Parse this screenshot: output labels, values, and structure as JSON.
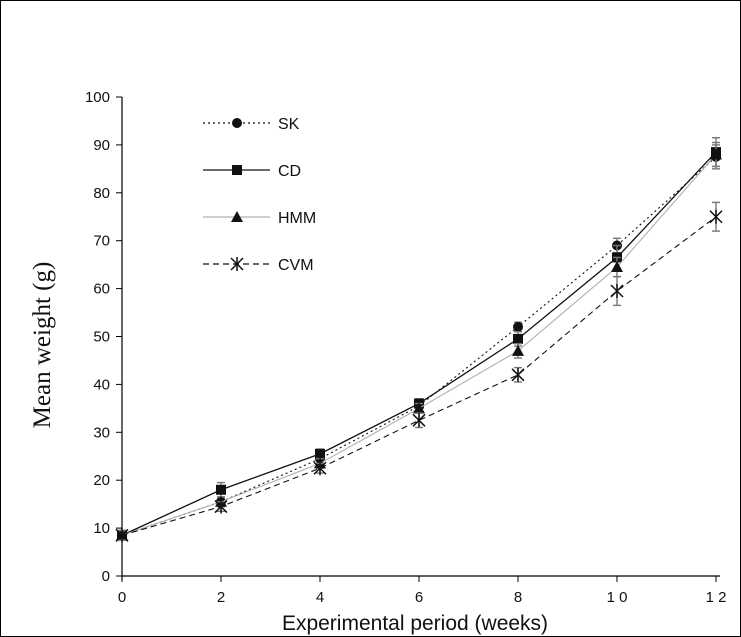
{
  "chart_data": {
    "type": "line",
    "title": "",
    "xlabel": "Experimental period (weeks)",
    "ylabel": "Mean weight (g)",
    "x": [
      0,
      2,
      4,
      6,
      8,
      10,
      12
    ],
    "x_tick_labels": [
      "0",
      "2",
      "4",
      "6",
      "8",
      "10",
      "12"
    ],
    "y_tick_labels": [
      "0",
      "10",
      "20",
      "30",
      "40",
      "50",
      "60",
      "70",
      "80",
      "90",
      "100"
    ],
    "xlim": [
      0,
      12
    ],
    "ylim": [
      0,
      100
    ],
    "grid": false,
    "legend_position": "top-left",
    "series": [
      {
        "name": "SK",
        "values": [
          8.5,
          15.5,
          24.5,
          35.5,
          52,
          69,
          87.5
        ],
        "errors": [
          1,
          1,
          1,
          1,
          1,
          1.5,
          2.5
        ],
        "marker": "circle",
        "line_style": "dotted",
        "color": "#111111"
      },
      {
        "name": "CD",
        "values": [
          8.5,
          18,
          25.5,
          36,
          49.5,
          66.5,
          88.5
        ],
        "errors": [
          1,
          1.5,
          1,
          1,
          1.5,
          2.5,
          3
        ],
        "marker": "square",
        "line_style": "solid",
        "color": "#111111"
      },
      {
        "name": "HMM",
        "values": [
          8.5,
          15.5,
          23.5,
          35,
          47,
          64.5,
          88
        ],
        "errors": [
          1,
          1,
          1,
          1,
          1.5,
          2,
          2.5
        ],
        "marker": "triangle",
        "line_style": "solid-light",
        "color": "#9a9a9a"
      },
      {
        "name": "CVM",
        "values": [
          8.5,
          14.5,
          22.5,
          32.5,
          42,
          59.5,
          75
        ],
        "errors": [
          1,
          1,
          1,
          1.5,
          1.5,
          3,
          3
        ],
        "marker": "cross",
        "line_style": "dashed",
        "color": "#111111"
      }
    ]
  }
}
